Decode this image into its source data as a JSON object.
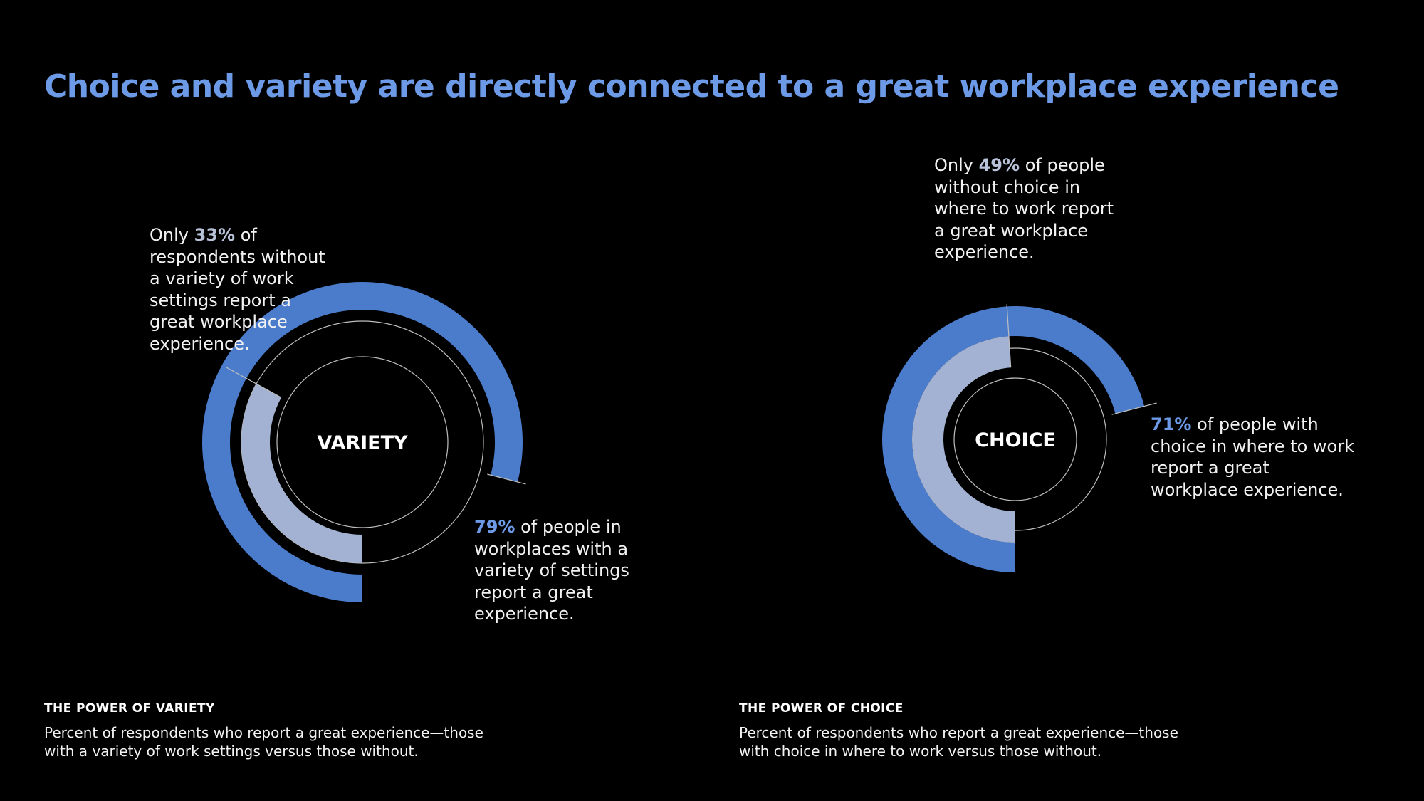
{
  "title": "Choice and variety are directly connected to a great workplace experience",
  "colors": {
    "background": "#000000",
    "title": "#6c9ae6",
    "ring_with": "#4a7ccb",
    "ring_without": "#a3b2d2",
    "guide_line": "#bfbfbf",
    "pct_with": "#6c9ae6",
    "pct_without": "#b7c2d9"
  },
  "chart_data": [
    {
      "type": "pie",
      "center_label": "VARIETY",
      "series": [
        {
          "name": "",
          "value": 79,
          "unit": "%"
        },
        {
          "name": "",
          "value": 33,
          "unit": "%"
        }
      ],
      "callouts": {
        "with": {
          "prefix": "",
          "pct": "79%",
          "text": " of people in workplaces with a variety of settings report a great experience."
        },
        "without": {
          "prefix": "Only ",
          "pct": "33%",
          "text": " of respondents without a variety of work settings report a great workplace experience."
        }
      },
      "caption_title": "THE POWER OF VARIETY",
      "caption_text": "Percent of respondents who report a great experience—those with a variety of work settings versus those without."
    },
    {
      "type": "pie",
      "center_label": "CHOICE",
      "series": [
        {
          "name": "",
          "value": 71,
          "unit": "%"
        },
        {
          "name": "",
          "value": 49,
          "unit": "%"
        }
      ],
      "callouts": {
        "with": {
          "prefix": "",
          "pct": "71%",
          "text": " of people with choice in where to work report a great workplace experience."
        },
        "without": {
          "prefix": "Only ",
          "pct": "49%",
          "text": " of people without choice in where to work report a great workplace experience."
        }
      },
      "caption_title": "THE POWER OF CHOICE",
      "caption_text": "Percent of respondents who report a great experience—those with choice in where to work versus those without."
    }
  ]
}
